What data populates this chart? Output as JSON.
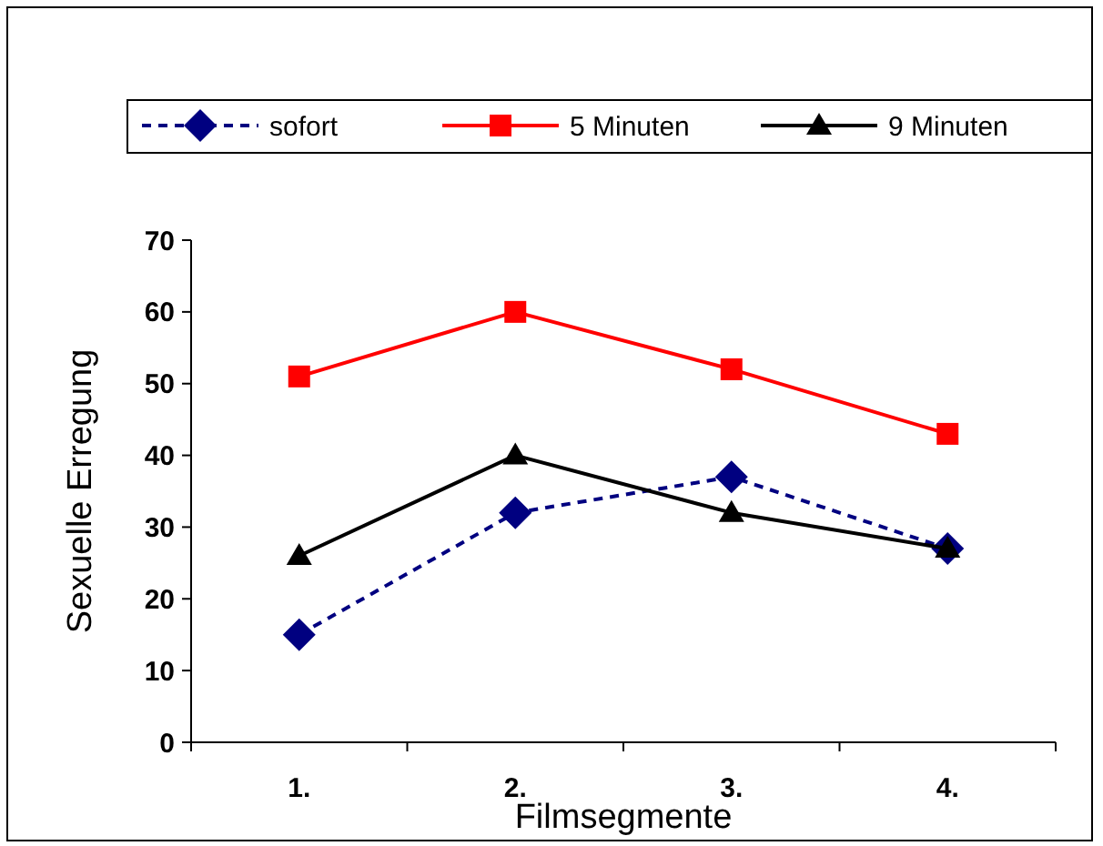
{
  "chart_data": {
    "type": "line",
    "xlabel": "Filmsegmente",
    "ylabel": "Sexuelle Erregung",
    "categories": [
      "1.",
      "2.",
      "3.",
      "4."
    ],
    "series": [
      {
        "name": "sofort",
        "color": "#000080",
        "values": [
          15,
          32,
          37,
          27
        ],
        "marker": "diamond",
        "line_style": "dashed"
      },
      {
        "name": "5 Minuten",
        "color": "#ff0000",
        "values": [
          51,
          60,
          52,
          43
        ],
        "marker": "square",
        "line_style": "solid"
      },
      {
        "name": "9 Minuten",
        "color": "#000000",
        "values": [
          26,
          40,
          32,
          27
        ],
        "marker": "triangle",
        "line_style": "solid"
      }
    ],
    "ylim": [
      0,
      70
    ],
    "yticks": [
      0,
      10,
      20,
      30,
      40,
      50,
      60,
      70
    ],
    "grid": false,
    "legend": "top"
  }
}
